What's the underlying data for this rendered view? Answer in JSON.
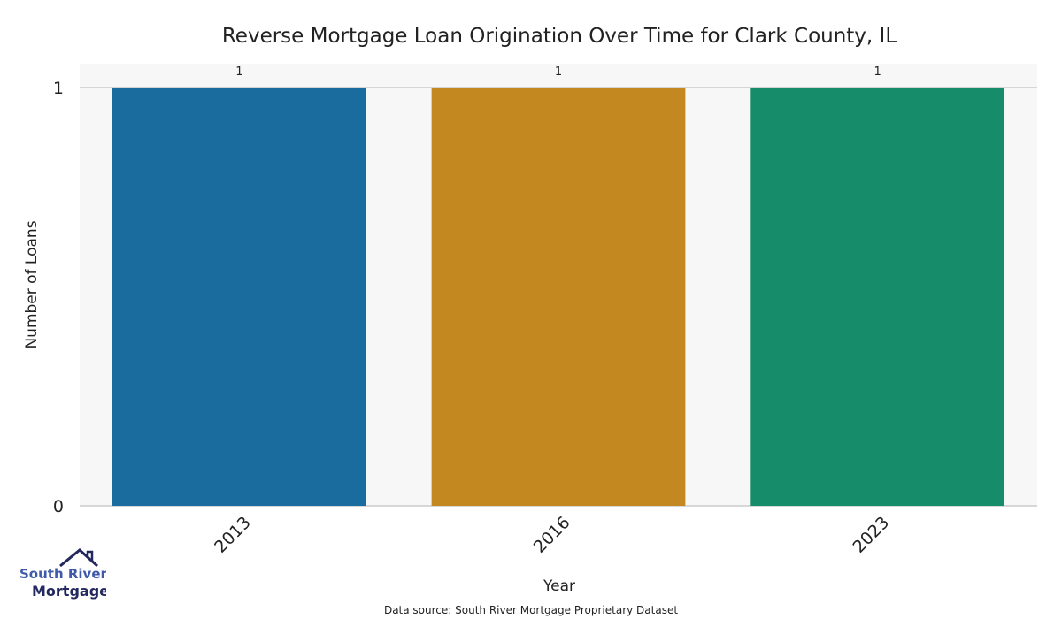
{
  "chart_data": {
    "type": "bar",
    "title": "Reverse Mortgage Loan Origination Over Time for Clark County, IL",
    "xlabel": "Year",
    "ylabel": "Number of Loans",
    "categories": [
      "2013",
      "2016",
      "2023"
    ],
    "values": [
      1,
      1,
      1
    ],
    "data_labels": [
      "1",
      "1",
      "1"
    ],
    "colors": [
      "#1a6b9e",
      "#c48820",
      "#178c6a"
    ],
    "yticks": [
      "0",
      "1"
    ],
    "ylim": [
      0,
      1.057
    ],
    "grid": true,
    "source": "Data source: South River Mortgage Proprietary Dataset"
  },
  "logo": {
    "line1": "South River",
    "line2": "Mortgage"
  }
}
